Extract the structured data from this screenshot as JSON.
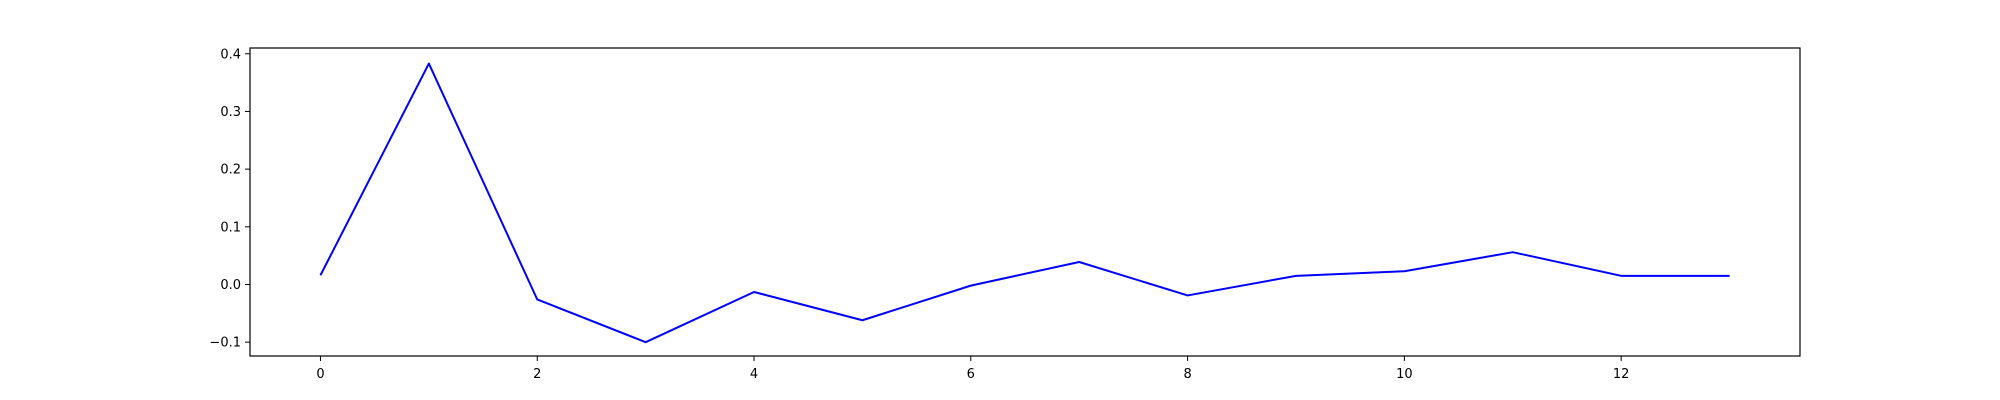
{
  "chart_data": {
    "type": "line",
    "title": "",
    "xlabel": "",
    "ylabel": "",
    "xlim": [
      -0.65,
      13.65
    ],
    "ylim": [
      -0.124,
      0.41
    ],
    "x_ticks": [
      0,
      2,
      4,
      6,
      8,
      10,
      12
    ],
    "x_tick_labels": [
      "0",
      "2",
      "4",
      "6",
      "8",
      "10",
      "12"
    ],
    "y_ticks": [
      -0.1,
      0.0,
      0.1,
      0.2,
      0.3,
      0.4
    ],
    "y_tick_labels": [
      "−0.1",
      "0.0",
      "0.1",
      "0.2",
      "0.3",
      "0.4"
    ],
    "grid": false,
    "legend": "none",
    "series": [
      {
        "color": "#0000ff",
        "x": [
          0,
          1,
          2,
          3,
          4,
          5,
          6,
          7,
          8,
          9,
          10,
          11,
          12,
          13
        ],
        "values": [
          0.016,
          0.383,
          -0.026,
          -0.1,
          -0.013,
          -0.062,
          -0.002,
          0.039,
          -0.019,
          0.015,
          0.023,
          0.056,
          0.015,
          0.015
        ]
      }
    ]
  }
}
